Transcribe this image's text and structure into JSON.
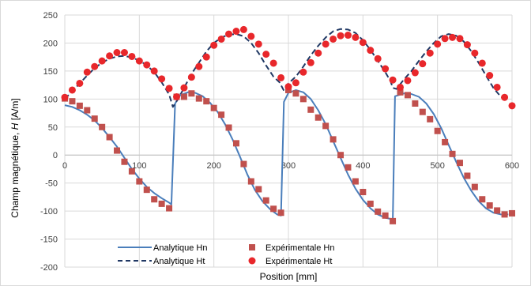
{
  "chart_data": {
    "type": "line",
    "title": "",
    "xlabel": "Position [mm]",
    "ylabel_prefix": "Champ magnétique, ",
    "ylabel_italic": "H",
    "ylabel_suffix": " [A/m]",
    "xlim": [
      0,
      600
    ],
    "ylim": [
      -200,
      250
    ],
    "x_ticks": [
      0,
      100,
      200,
      300,
      400,
      500,
      600
    ],
    "y_ticks": [
      -200,
      -150,
      -100,
      -50,
      0,
      50,
      100,
      150,
      200,
      250
    ],
    "x_tick_labels": [
      "0",
      "100",
      "200",
      "300",
      "400",
      "500",
      "600"
    ],
    "y_tick_labels": [
      "-200",
      "-150",
      "-100",
      "-50",
      "0",
      "50",
      "100",
      "150",
      "200",
      "250"
    ],
    "grid": true,
    "legend_position": "bottom",
    "colors": {
      "analytic_line": "#4a7ebb",
      "analytic_dash": "#203864",
      "exp_square": "#c0504d",
      "exp_circle": "#e8272b",
      "grid": "#d9d9d9"
    },
    "series": [
      {
        "name": "Analytique Hn",
        "style": "solid",
        "points": [
          [
            0,
            89
          ],
          [
            10,
            86
          ],
          [
            20,
            80
          ],
          [
            30,
            72
          ],
          [
            40,
            62
          ],
          [
            50,
            48
          ],
          [
            60,
            32
          ],
          [
            70,
            15
          ],
          [
            80,
            -5
          ],
          [
            90,
            -25
          ],
          [
            100,
            -42
          ],
          [
            110,
            -57
          ],
          [
            120,
            -68
          ],
          [
            130,
            -77
          ],
          [
            140,
            -85
          ],
          [
            143,
            -88
          ],
          [
            148,
            92
          ],
          [
            155,
            107
          ],
          [
            165,
            112
          ],
          [
            175,
            111
          ],
          [
            185,
            105
          ],
          [
            195,
            93
          ],
          [
            205,
            77
          ],
          [
            215,
            55
          ],
          [
            225,
            28
          ],
          [
            235,
            -3
          ],
          [
            245,
            -35
          ],
          [
            255,
            -62
          ],
          [
            265,
            -82
          ],
          [
            275,
            -96
          ],
          [
            285,
            -106
          ],
          [
            290,
            -108
          ],
          [
            294,
            95
          ],
          [
            300,
            111
          ],
          [
            310,
            116
          ],
          [
            320,
            112
          ],
          [
            330,
            100
          ],
          [
            340,
            80
          ],
          [
            350,
            55
          ],
          [
            360,
            25
          ],
          [
            370,
            -5
          ],
          [
            380,
            -35
          ],
          [
            390,
            -60
          ],
          [
            400,
            -80
          ],
          [
            410,
            -95
          ],
          [
            420,
            -106
          ],
          [
            430,
            -112
          ],
          [
            437,
            -114
          ],
          [
            440,
            -115
          ],
          [
            443,
            105
          ],
          [
            455,
            110
          ],
          [
            465,
            109
          ],
          [
            475,
            104
          ],
          [
            485,
            92
          ],
          [
            495,
            73
          ],
          [
            505,
            48
          ],
          [
            515,
            18
          ],
          [
            525,
            -12
          ],
          [
            535,
            -40
          ],
          [
            545,
            -63
          ],
          [
            555,
            -82
          ],
          [
            565,
            -95
          ],
          [
            575,
            -103
          ],
          [
            585,
            -106
          ],
          [
            595,
            -106
          ]
        ]
      },
      {
        "name": "Analytique Ht",
        "style": "dashed",
        "points": [
          [
            0,
            100
          ],
          [
            10,
            114
          ],
          [
            20,
            128
          ],
          [
            30,
            142
          ],
          [
            40,
            155
          ],
          [
            50,
            165
          ],
          [
            60,
            172
          ],
          [
            70,
            176
          ],
          [
            80,
            177
          ],
          [
            90,
            174
          ],
          [
            100,
            169
          ],
          [
            110,
            160
          ],
          [
            120,
            148
          ],
          [
            130,
            130
          ],
          [
            140,
            108
          ],
          [
            145,
            86
          ],
          [
            152,
            100
          ],
          [
            160,
            120
          ],
          [
            170,
            145
          ],
          [
            180,
            165
          ],
          [
            190,
            185
          ],
          [
            200,
            200
          ],
          [
            210,
            210
          ],
          [
            220,
            215
          ],
          [
            230,
            216
          ],
          [
            240,
            212
          ],
          [
            250,
            200
          ],
          [
            260,
            182
          ],
          [
            270,
            160
          ],
          [
            280,
            140
          ],
          [
            288,
            130
          ],
          [
            294,
            115
          ],
          [
            300,
            128
          ],
          [
            310,
            140
          ],
          [
            320,
            158
          ],
          [
            330,
            178
          ],
          [
            340,
            195
          ],
          [
            350,
            210
          ],
          [
            360,
            221
          ],
          [
            370,
            225
          ],
          [
            380,
            224
          ],
          [
            390,
            218
          ],
          [
            400,
            205
          ],
          [
            410,
            188
          ],
          [
            420,
            168
          ],
          [
            430,
            148
          ],
          [
            437,
            132
          ],
          [
            440,
            120
          ],
          [
            445,
            118
          ],
          [
            455,
            135
          ],
          [
            465,
            150
          ],
          [
            475,
            168
          ],
          [
            485,
            185
          ],
          [
            495,
            200
          ],
          [
            505,
            212
          ],
          [
            515,
            216
          ],
          [
            525,
            213
          ],
          [
            535,
            203
          ],
          [
            545,
            186
          ],
          [
            555,
            165
          ],
          [
            565,
            142
          ],
          [
            575,
            120
          ],
          [
            585,
            104
          ],
          [
            595,
            95
          ]
        ]
      },
      {
        "name": "Expérimentale Hn",
        "style": "square",
        "points": [
          [
            0,
            101
          ],
          [
            10,
            96
          ],
          [
            20,
            88
          ],
          [
            30,
            80
          ],
          [
            40,
            65
          ],
          [
            50,
            50
          ],
          [
            60,
            32
          ],
          [
            70,
            8
          ],
          [
            80,
            -12
          ],
          [
            90,
            -29
          ],
          [
            100,
            -47
          ],
          [
            110,
            -62
          ],
          [
            120,
            -79
          ],
          [
            130,
            -87
          ],
          [
            140,
            -95
          ],
          [
            150,
            104
          ],
          [
            160,
            104
          ],
          [
            170,
            110
          ],
          [
            180,
            101
          ],
          [
            190,
            96
          ],
          [
            200,
            84
          ],
          [
            210,
            72
          ],
          [
            220,
            49
          ],
          [
            230,
            21
          ],
          [
            240,
            -16
          ],
          [
            250,
            -47
          ],
          [
            260,
            -61
          ],
          [
            270,
            -81
          ],
          [
            280,
            -96
          ],
          [
            290,
            -103
          ],
          [
            300,
            116
          ],
          [
            310,
            110
          ],
          [
            320,
            100
          ],
          [
            330,
            81
          ],
          [
            340,
            67
          ],
          [
            350,
            52
          ],
          [
            360,
            28
          ],
          [
            370,
            0
          ],
          [
            380,
            -22
          ],
          [
            390,
            -47
          ],
          [
            400,
            -66
          ],
          [
            410,
            -87
          ],
          [
            420,
            -101
          ],
          [
            430,
            -108
          ],
          [
            440,
            -118
          ],
          [
            450,
            112
          ],
          [
            460,
            107
          ],
          [
            470,
            92
          ],
          [
            480,
            77
          ],
          [
            490,
            64
          ],
          [
            500,
            43
          ],
          [
            510,
            23
          ],
          [
            520,
            2
          ],
          [
            530,
            -14
          ],
          [
            540,
            -37
          ],
          [
            550,
            -57
          ],
          [
            560,
            -79
          ],
          [
            570,
            -90
          ],
          [
            580,
            -99
          ],
          [
            590,
            -106
          ],
          [
            600,
            -104
          ]
        ]
      },
      {
        "name": "Expérimentale Ht",
        "style": "circle",
        "points": [
          [
            0,
            103
          ],
          [
            10,
            116
          ],
          [
            20,
            128
          ],
          [
            30,
            148
          ],
          [
            40,
            158
          ],
          [
            50,
            168
          ],
          [
            60,
            177
          ],
          [
            70,
            183
          ],
          [
            80,
            183
          ],
          [
            90,
            176
          ],
          [
            100,
            168
          ],
          [
            110,
            161
          ],
          [
            120,
            150
          ],
          [
            130,
            136
          ],
          [
            140,
            119
          ],
          [
            150,
            104
          ],
          [
            160,
            120
          ],
          [
            170,
            139
          ],
          [
            180,
            158
          ],
          [
            190,
            175
          ],
          [
            200,
            196
          ],
          [
            210,
            207
          ],
          [
            220,
            216
          ],
          [
            230,
            221
          ],
          [
            240,
            224
          ],
          [
            250,
            212
          ],
          [
            260,
            198
          ],
          [
            270,
            180
          ],
          [
            280,
            164
          ],
          [
            290,
            138
          ],
          [
            300,
            122
          ],
          [
            310,
            129
          ],
          [
            320,
            148
          ],
          [
            330,
            165
          ],
          [
            340,
            182
          ],
          [
            350,
            198
          ],
          [
            360,
            207
          ],
          [
            370,
            213
          ],
          [
            380,
            214
          ],
          [
            390,
            210
          ],
          [
            400,
            201
          ],
          [
            410,
            187
          ],
          [
            420,
            172
          ],
          [
            430,
            154
          ],
          [
            440,
            134
          ],
          [
            450,
            121
          ],
          [
            460,
            133
          ],
          [
            470,
            147
          ],
          [
            480,
            163
          ],
          [
            490,
            182
          ],
          [
            500,
            198
          ],
          [
            510,
            208
          ],
          [
            520,
            210
          ],
          [
            530,
            208
          ],
          [
            540,
            197
          ],
          [
            550,
            182
          ],
          [
            560,
            164
          ],
          [
            570,
            142
          ],
          [
            580,
            121
          ],
          [
            590,
            103
          ],
          [
            600,
            88
          ]
        ]
      }
    ]
  }
}
